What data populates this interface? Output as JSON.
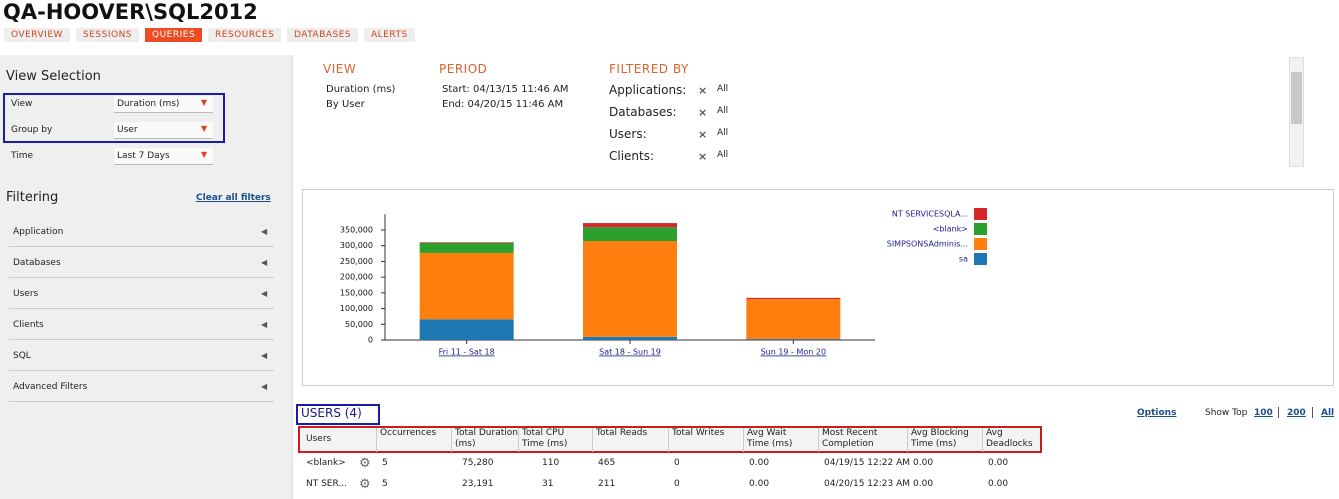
{
  "header": {
    "title": "QA-HOOVER\\SQL2012",
    "tabs": [
      "OVERVIEW",
      "SESSIONS",
      "QUERIES",
      "RESOURCES",
      "DATABASES",
      "ALERTS"
    ]
  },
  "sidebar": {
    "view_selection": {
      "title": "View Selection",
      "fields": [
        {
          "label": "View",
          "value": "Duration (ms)"
        },
        {
          "label": "Group by",
          "value": "User"
        },
        {
          "label": "Time",
          "value": "Last 7 Days"
        }
      ]
    },
    "filtering": {
      "title": "Filtering",
      "clear": "Clear all filters",
      "items": [
        "Application",
        "Databases",
        "Users",
        "Clients",
        "SQL",
        "Advanced Filters"
      ]
    }
  },
  "summary": {
    "view": {
      "title": "VIEW",
      "lines": [
        "Duration (ms)",
        "By User"
      ]
    },
    "period": {
      "title": "PERIOD",
      "lines": [
        "Start: 04/13/15 11:46 AM",
        "End: 04/20/15 11:46 AM"
      ]
    },
    "filtered_by": {
      "title": "FILTERED BY",
      "filters": [
        {
          "label": "Applications:",
          "value": "All"
        },
        {
          "label": "Databases:",
          "value": "All"
        },
        {
          "label": "Users:",
          "value": "All"
        },
        {
          "label": "Clients:",
          "value": "All"
        }
      ]
    }
  },
  "chart_data": {
    "type": "stacked-bar",
    "categories": [
      "Fri 11 - Sat 18",
      "Sat 18 - Sun 19",
      "Sun 19 - Mon 20"
    ],
    "series": [
      {
        "name": "NT SERVICESQLA...",
        "color": "#d62728",
        "values": [
          2000,
          13000,
          4000
        ]
      },
      {
        "name": "<blank>",
        "color": "#2ca02c",
        "values": [
          32000,
          44000,
          0
        ]
      },
      {
        "name": "SIMPSONSAdminis...",
        "color": "#ff7f0e",
        "values": [
          211000,
          305000,
          127000
        ]
      },
      {
        "name": "sa",
        "color": "#1f77b4",
        "values": [
          66000,
          10000,
          3000
        ]
      }
    ],
    "ylim": [
      0,
      400000
    ],
    "yticks": [
      0,
      {
        "value": 50000,
        "label": "50,000"
      },
      {
        "value": 100000,
        "label": "100,000"
      },
      {
        "value": 150000,
        "label": "150,000"
      },
      {
        "value": 200000,
        "label": "200,000"
      },
      {
        "value": 250000,
        "label": "250,000"
      },
      {
        "value": 300000,
        "label": "300,000"
      },
      {
        "value": 350000,
        "label": "350,000"
      }
    ],
    "legend": "top-right"
  },
  "users_table": {
    "title": "USERS (4)",
    "options": "Options",
    "show_top": "Show Top",
    "show_top_options": [
      "100",
      "200",
      "All"
    ],
    "columns": [
      "Users",
      "Occurrences",
      "Total Duration (ms)",
      "Total CPU Time (ms)",
      "Total Reads",
      "Total Writes",
      "Avg Wait Time (ms)",
      "Most Recent Completion",
      "Avg Blocking Time (ms)",
      "Avg Deadlocks"
    ],
    "rows": [
      [
        "<blank>",
        "5",
        "75,280",
        "110",
        "465",
        "0",
        "0.00",
        "04/19/15 12:22 AM",
        "0.00",
        "0.00"
      ],
      [
        "NT SER...",
        "5",
        "23,191",
        "31",
        "211",
        "0",
        "0.00",
        "04/20/15 12:23 AM",
        "0.00",
        "0.00"
      ]
    ]
  }
}
